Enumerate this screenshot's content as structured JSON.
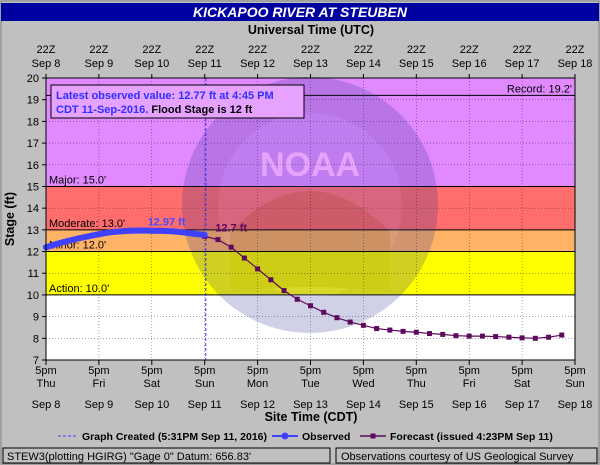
{
  "chart_data": {
    "type": "line",
    "title": "KICKAPOO RIVER AT STEUBEN",
    "top_axis_label": "Universal Time (UTC)",
    "xlabel": "Site Time (CDT)",
    "ylabel": "Stage (ft)",
    "ylim": [
      7,
      20
    ],
    "y_ticks": [
      "7",
      "8",
      "9",
      "10",
      "11",
      "12",
      "13",
      "14",
      "15",
      "16",
      "17",
      "18",
      "19",
      "20"
    ],
    "x_range_days": [
      "Sep 8",
      "Sep 18"
    ],
    "x_ticks_site": [
      {
        "time": "5pm",
        "day": "Thu",
        "date": "Sep 8"
      },
      {
        "time": "5pm",
        "day": "Fri",
        "date": "Sep 9"
      },
      {
        "time": "5pm",
        "day": "Sat",
        "date": "Sep 10"
      },
      {
        "time": "5pm",
        "day": "Sun",
        "date": "Sep 11"
      },
      {
        "time": "5pm",
        "day": "Mon",
        "date": "Sep 12"
      },
      {
        "time": "5pm",
        "day": "Tue",
        "date": "Sep 13"
      },
      {
        "time": "5pm",
        "day": "Wed",
        "date": "Sep 14"
      },
      {
        "time": "5pm",
        "day": "Thu",
        "date": "Sep 15"
      },
      {
        "time": "5pm",
        "day": "Fri",
        "date": "Sep 16"
      },
      {
        "time": "5pm",
        "day": "Sat",
        "date": "Sep 17"
      },
      {
        "time": "5pm",
        "day": "Sun",
        "date": "Sep 18"
      }
    ],
    "x_ticks_utc": [
      {
        "time": "22Z",
        "date": "Sep 8"
      },
      {
        "time": "22Z",
        "date": "Sep 9"
      },
      {
        "time": "22Z",
        "date": "Sep 10"
      },
      {
        "time": "22Z",
        "date": "Sep 11"
      },
      {
        "time": "22Z",
        "date": "Sep 12"
      },
      {
        "time": "22Z",
        "date": "Sep 13"
      },
      {
        "time": "22Z",
        "date": "Sep 14"
      },
      {
        "time": "22Z",
        "date": "Sep 15"
      },
      {
        "time": "22Z",
        "date": "Sep 16"
      },
      {
        "time": "22Z",
        "date": "Sep 17"
      },
      {
        "time": "22Z",
        "date": "Sep 18"
      }
    ],
    "flood_categories": [
      {
        "label": "Action: 10.0'",
        "from": 10,
        "to": 12,
        "color": "#ffff00"
      },
      {
        "label": "Minor: 12.0'",
        "from": 12,
        "to": 13,
        "color": "#ffb366"
      },
      {
        "label": "Moderate: 13.0'",
        "from": 13,
        "to": 15,
        "color": "#ff6d6d"
      },
      {
        "label": "Major: 15.0'",
        "from": 15,
        "to": 20,
        "color": "#e18aff"
      }
    ],
    "record": {
      "label": "Record: 19.2'",
      "value": 19.2
    },
    "info_box": {
      "line1": "Latest observed value: 12.77 ft at 4:45 PM",
      "line2_blue": "CDT 11-Sep-2016.",
      "line2_black": " Flood Stage is 12 ft"
    },
    "annotations": [
      {
        "label": "12.97 ft",
        "x_day": 9.92,
        "y": 12.97,
        "color": "#4a4aff"
      },
      {
        "label": "12.7 ft",
        "x_day": 11.2,
        "y": 12.7,
        "color": "#5c0a5c"
      }
    ],
    "graph_created": {
      "x_day": 11.02,
      "label": "Graph Created (5:31PM Sep 11, 2016)"
    },
    "series": [
      {
        "name": "Observed",
        "color": "#4040ff",
        "x_day": [
          8.0,
          8.2,
          8.4,
          8.6,
          8.8,
          9.0,
          9.2,
          9.4,
          9.6,
          9.8,
          10.0,
          10.2,
          10.4,
          10.6,
          10.8,
          11.0
        ],
        "y": [
          12.2,
          12.35,
          12.48,
          12.6,
          12.7,
          12.8,
          12.88,
          12.93,
          12.96,
          12.97,
          12.96,
          12.95,
          12.93,
          12.88,
          12.82,
          12.77
        ]
      },
      {
        "name": "Forecast (issued 4:23PM Sep 11)",
        "color": "#5c0a5c",
        "x_day": [
          11.0,
          11.25,
          11.5,
          11.75,
          12.0,
          12.25,
          12.5,
          12.75,
          13.0,
          13.25,
          13.5,
          13.75,
          14.0,
          14.25,
          14.5,
          14.75,
          15.0,
          15.25,
          15.5,
          15.75,
          16.0,
          16.25,
          16.5,
          16.75,
          17.0,
          17.25,
          17.5,
          17.75
        ],
        "y": [
          12.7,
          12.55,
          12.2,
          11.7,
          11.2,
          10.7,
          10.2,
          9.8,
          9.5,
          9.2,
          8.95,
          8.75,
          8.6,
          8.45,
          8.38,
          8.32,
          8.28,
          8.22,
          8.18,
          8.12,
          8.1,
          8.1,
          8.08,
          8.05,
          8.02,
          8.0,
          8.05,
          8.15
        ]
      }
    ],
    "legend": {
      "graph_created": "Graph Created (5:31PM Sep 11, 2016)",
      "observed": "Observed",
      "forecast": "Forecast (issued 4:23PM Sep 11)"
    },
    "footer": {
      "left": "STEW3(plotting HGIRG) \"Gage 0\" Datum: 656.83'",
      "right": "Observations courtesy of US Geological Survey"
    }
  }
}
